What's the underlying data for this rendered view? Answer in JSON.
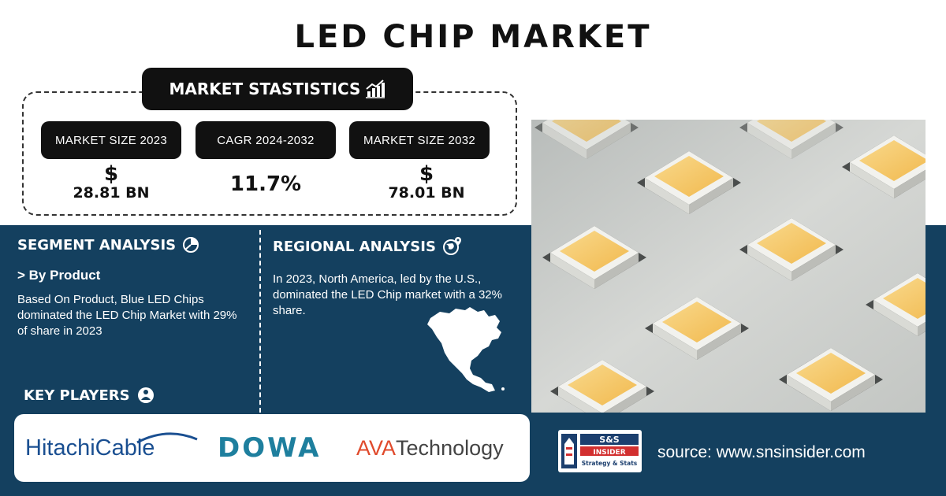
{
  "title": "LED CHIP MARKET",
  "stats": {
    "heading": "MARKET STASTISTICS",
    "items": [
      {
        "label": "MARKET SIZE 2023",
        "symbol": "$",
        "value": "28.81 BN"
      },
      {
        "label": "CAGR 2024-2032",
        "symbol": "",
        "value": "11.7%"
      },
      {
        "label": "MARKET SIZE 2032",
        "symbol": "$",
        "value": "78.01 BN"
      }
    ]
  },
  "segment": {
    "heading": "SEGMENT ANALYSIS",
    "subheading": "> By Product",
    "text": "Based On Product, Blue LED Chips dominated the LED Chip Market with 29% of share in 2023"
  },
  "regional": {
    "heading": "REGIONAL ANALYSIS",
    "text": "In 2023, North America, led by the U.S., dominated the LED Chip market with a 32% share."
  },
  "key_players": {
    "heading": "KEY PLAYERS",
    "logos": {
      "hitachi_a": "Hitachi",
      "hitachi_b": "Cable",
      "dowa": "DOWA",
      "ava_a": "AVA",
      "ava_b": " Technology"
    }
  },
  "brand": {
    "logo_top": "S&S",
    "logo_mid": "INSIDER",
    "logo_bottom": "Strategy & Stats"
  },
  "source": "source: www.snsinsider.com",
  "colors": {
    "band": "#14405f",
    "dark": "#111111",
    "led": "#f6c766"
  }
}
